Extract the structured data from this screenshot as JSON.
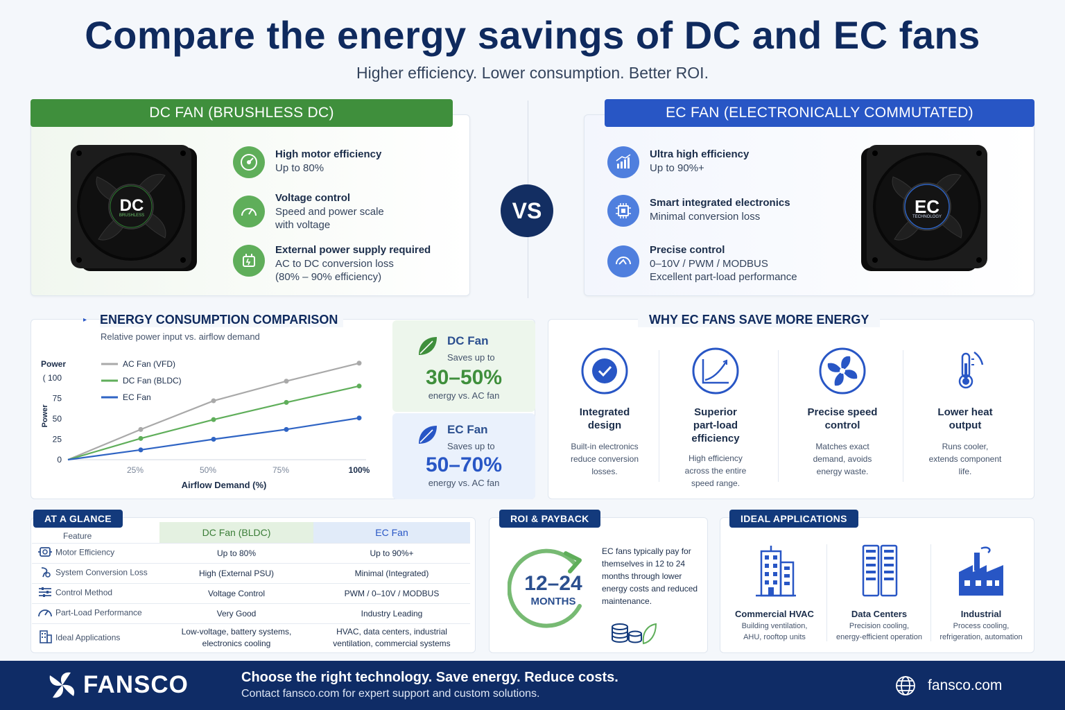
{
  "header": {
    "title": "Compare the energy savings of DC and EC fans",
    "subtitle": "Higher efficiency. Lower consumption. Better ROI."
  },
  "dc_card": {
    "banner": "DC FAN (BRUSHLESS DC)",
    "fan_label": "DC",
    "fan_sub": "BRUSHLESS",
    "features": [
      {
        "title": "High motor efficiency",
        "desc": [
          "Up to 80%"
        ],
        "icon": "gauge-icon"
      },
      {
        "title": "Voltage control",
        "desc": [
          "Speed and power scale",
          "with voltage"
        ],
        "icon": "speedometer-icon"
      },
      {
        "title": "External power supply required",
        "desc": [
          "AC to DC conversion loss",
          "(80% – 90% efficiency)"
        ],
        "icon": "power-supply-icon"
      }
    ]
  },
  "vs": "VS",
  "ec_card": {
    "banner": "EC FAN (ELECTRONICALLY COMMUTATED)",
    "fan_label": "EC",
    "fan_sub": "TECHNOLOGY",
    "features": [
      {
        "title": "Ultra high efficiency",
        "desc": [
          "Up to 90%+"
        ],
        "icon": "bar-growth-icon"
      },
      {
        "title": "Smart integrated electronics",
        "desc": [
          "Minimal conversion loss"
        ],
        "icon": "chip-icon"
      },
      {
        "title": "Precise control",
        "desc": [
          "0–10V / PWM / MODBUS",
          "Excellent part-load performance"
        ],
        "icon": "control-icon"
      }
    ]
  },
  "energy": {
    "title": "ENERGY CONSUMPTION COMPARISON",
    "subtitle": "Relative power input vs. airflow demand"
  },
  "chart_data": {
    "type": "line",
    "title": "ENERGY CONSUMPTION COMPARISON",
    "subtitle": "Relative power input vs. airflow demand",
    "xlabel": "Airflow Demand (%)",
    "ylabel": "Power",
    "y_top_label": "Power",
    "x": [
      0,
      25,
      50,
      75,
      100
    ],
    "x_tick_labels": [
      "25%",
      "50%",
      "75%",
      "100%"
    ],
    "x_ticks": [
      25,
      50,
      75,
      100
    ],
    "y_ticks": [
      0,
      25,
      50,
      75,
      100
    ],
    "y_tick_labels": [
      "0",
      "25",
      "50",
      "75",
      "( 100"
    ],
    "ylim": [
      0,
      100
    ],
    "xlim": [
      0,
      100
    ],
    "series": [
      {
        "name": "AC Fan (VFD)",
        "color": "#a9a9a9",
        "values": [
          0,
          37,
          72,
          96,
          118
        ]
      },
      {
        "name": "DC Fan (BLDC)",
        "color": "#5fae5a",
        "values": [
          0,
          26,
          49,
          70,
          90
        ]
      },
      {
        "name": "EC Fan",
        "color": "#2f64c4",
        "values": [
          0,
          12,
          25,
          37,
          51
        ]
      }
    ],
    "legend": "top-left"
  },
  "savings": {
    "dc": {
      "name": "DC Fan",
      "up": "Saves up to",
      "pct": "30–50%",
      "vs": "energy vs. AC fan",
      "color": "#3f8f3c"
    },
    "ec": {
      "name": "EC Fan",
      "up": "Saves up to",
      "pct": "50–70%",
      "vs": "energy vs. AC fan",
      "color": "#2856c5"
    }
  },
  "why": {
    "title": "WHY EC FANS SAVE MORE ENERGY",
    "items": [
      {
        "title": [
          "Integrated",
          "design"
        ],
        "desc": [
          "Built-in electronics",
          "reduce conversion",
          "losses."
        ],
        "icon": "check-circle-icon"
      },
      {
        "title": [
          "Superior",
          "part-load",
          "efficiency"
        ],
        "desc": [
          "High efficiency",
          "across the entire",
          "speed range."
        ],
        "icon": "chart-curve-icon"
      },
      {
        "title": [
          "Precise speed",
          "control"
        ],
        "desc": [
          "Matches exact",
          "demand, avoids",
          "energy waste."
        ],
        "icon": "fan-icon"
      },
      {
        "title": [
          "Lower heat",
          "output"
        ],
        "desc": [
          "Runs cooler,",
          "extends component",
          "life."
        ],
        "icon": "thermometer-icon"
      }
    ]
  },
  "glance": {
    "tag": "AT A GLANCE",
    "headers": {
      "feature": "Feature",
      "dc": "DC Fan (BLDC)",
      "ec": "EC Fan"
    },
    "rows": [
      {
        "feature": "Motor Efficiency",
        "dc": "Up to 80%",
        "ec": "Up to 90%+",
        "icon": "motor-icon"
      },
      {
        "feature": "System Conversion Loss",
        "dc": "High (External PSU)",
        "ec": "Minimal (Integrated)",
        "icon": "plug-icon"
      },
      {
        "feature": "Control Method",
        "dc": "Voltage Control",
        "ec": "PWM / 0–10V / MODBUS",
        "icon": "sliders-icon"
      },
      {
        "feature": "Part-Load Performance",
        "dc": "Very Good",
        "ec": "Industry Leading",
        "icon": "gauge-small-icon"
      },
      {
        "feature": "Ideal Applications",
        "dc": "Low-voltage, battery systems, electronics cooling",
        "ec": "HVAC, data centers, industrial ventilation, commercial systems",
        "icon": "building-small-icon"
      }
    ]
  },
  "roi": {
    "tag": "ROI & PAYBACK",
    "months_num": "12–24",
    "months_unit": "MONTHS",
    "text": "EC fans typically pay for themselves in 12 to 24 months through lower energy costs and reduced maintenance."
  },
  "apps": {
    "tag": "IDEAL APPLICATIONS",
    "items": [
      {
        "title": "Commercial HVAC",
        "desc": [
          "Building ventilation,",
          "AHU, rooftop units"
        ],
        "icon": "building-icon"
      },
      {
        "title": "Data Centers",
        "desc": [
          "Precision cooling,",
          "energy-efficient operation"
        ],
        "icon": "server-icon"
      },
      {
        "title": "Industrial",
        "desc": [
          "Process cooling,",
          "refrigeration, automation"
        ],
        "icon": "factory-icon"
      }
    ]
  },
  "footer": {
    "brand": "FANSCO",
    "headline": "Choose the right technology. Save energy. Reduce costs.",
    "sub": "Contact fansco.com for expert support and custom solutions.",
    "url": "fansco.com"
  }
}
